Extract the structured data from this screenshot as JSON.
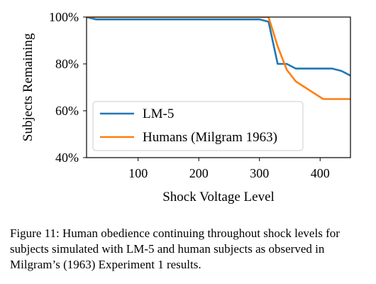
{
  "chart_data": {
    "type": "line",
    "xlabel": "Shock Voltage Level",
    "ylabel": "Subjects Remaining",
    "xlim": [
      15,
      450
    ],
    "ylim": [
      40,
      100
    ],
    "xticks": [
      100,
      200,
      300,
      400
    ],
    "yticks": [
      40,
      60,
      80,
      100
    ],
    "ytick_labels": [
      "40%",
      "60%",
      "80%",
      "100%"
    ],
    "grid": false,
    "legend_position": "lower-left",
    "series": [
      {
        "name": "LM-5",
        "color": "#1f77b4",
        "x": [
          15,
          30,
          300,
          315,
          330,
          345,
          360,
          375,
          390,
          405,
          420,
          435,
          450
        ],
        "y": [
          100,
          99,
          99,
          98,
          80,
          80,
          78,
          78,
          78,
          78,
          78,
          77,
          75
        ]
      },
      {
        "name": "Humans (Milgram 1963)",
        "color": "#ff7f0e",
        "x": [
          15,
          300,
          315,
          330,
          345,
          360,
          375,
          390,
          405,
          420,
          435,
          450
        ],
        "y": [
          100,
          100,
          100,
          87.5,
          77.5,
          72.5,
          70,
          67.5,
          65,
          65,
          65,
          65
        ]
      }
    ]
  },
  "caption": "Figure 11: Human obedience continuing throughout shock levels for subjects simulated with LM-5 and human subjects as observed in Milgram’s (1963) Experiment 1 results."
}
